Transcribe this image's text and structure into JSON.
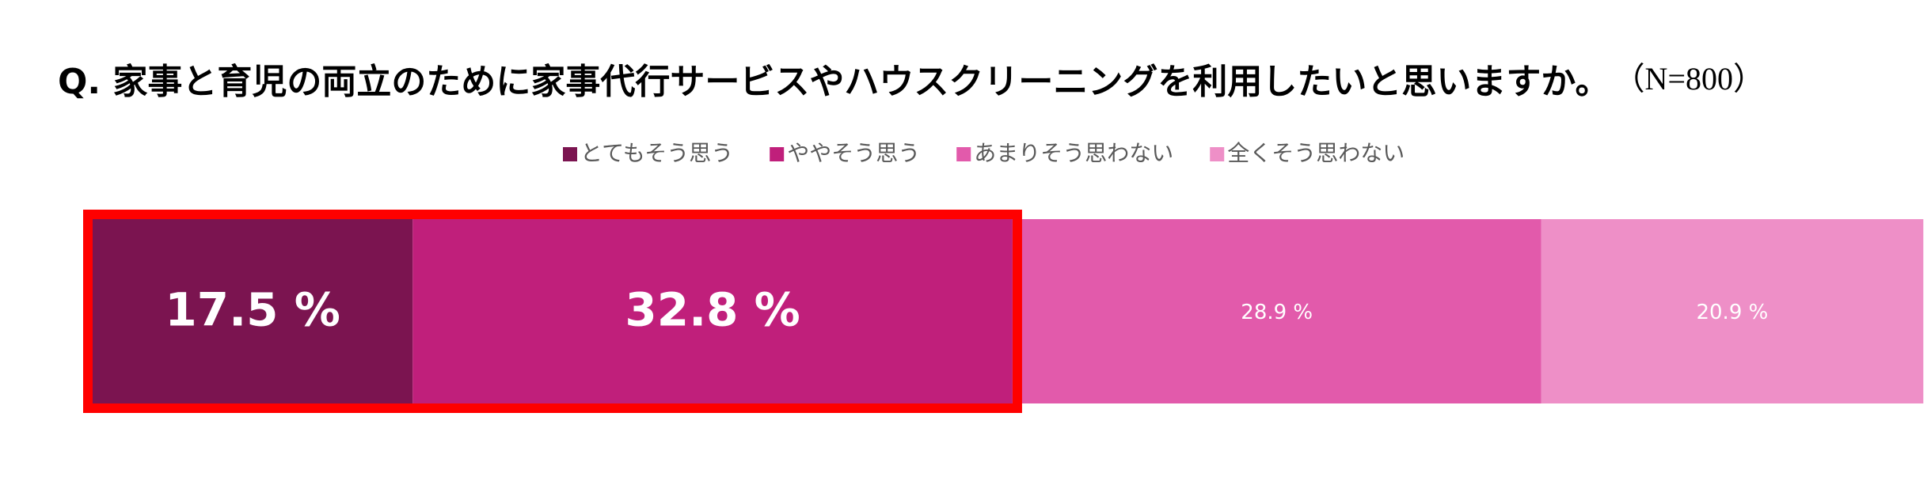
{
  "chart_data": {
    "type": "stacked-bar",
    "title": "Q. 家事と育児の両立のために家事代行サービスやハウスクリーニングを利用したいと思いますか。",
    "note": "（N=800）",
    "xlim": [
      0,
      100
    ],
    "series": [
      {
        "name": "とてもそう思う",
        "color": "#7b1450",
        "values": [
          17.5
        ],
        "value_labels": [
          "17.5 %"
        ]
      },
      {
        "name": "ややそう思う",
        "color": "#c01f7b",
        "values": [
          32.8
        ],
        "value_labels": [
          "32.8 %"
        ]
      },
      {
        "name": "あまりそう思わない",
        "color": "#e25aab",
        "values": [
          28.9
        ],
        "value_labels": [
          "28.9 %"
        ]
      },
      {
        "name": "全くそう思わない",
        "color": "#ee8fc7",
        "values": [
          20.9
        ],
        "value_labels": [
          "20.9 %"
        ]
      }
    ]
  }
}
